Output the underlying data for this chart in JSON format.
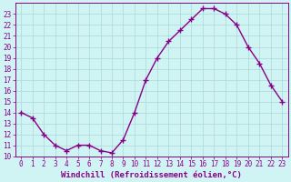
{
  "x": [
    0,
    1,
    2,
    3,
    4,
    5,
    6,
    7,
    8,
    9,
    10,
    11,
    12,
    13,
    14,
    15,
    16,
    17,
    18,
    19,
    20,
    21,
    22,
    23
  ],
  "y": [
    14,
    13.5,
    12,
    11,
    10.5,
    11,
    11,
    10.5,
    10.3,
    11.5,
    14,
    17,
    19,
    20.5,
    21.5,
    22.5,
    23.5,
    23.5,
    23,
    22,
    20,
    18.5,
    16.5,
    15
  ],
  "line_color": "#880088",
  "marker": "+",
  "markersize": 4,
  "linewidth": 1.0,
  "bg_color": "#d0f4f4",
  "grid_color": "#a8d8d8",
  "xlabel": "Windchill (Refroidissement éolien,°C)",
  "xlabel_fontsize": 6.5,
  "ylim_min": 10,
  "ylim_max": 24,
  "yticks": [
    10,
    11,
    12,
    13,
    14,
    15,
    16,
    17,
    18,
    19,
    20,
    21,
    22,
    23
  ],
  "xticks": [
    0,
    1,
    2,
    3,
    4,
    5,
    6,
    7,
    8,
    9,
    10,
    11,
    12,
    13,
    14,
    15,
    16,
    17,
    18,
    19,
    20,
    21,
    22,
    23
  ],
  "tick_fontsize": 5.5,
  "axis_color": "#880088",
  "markeredgewidth": 1.0
}
